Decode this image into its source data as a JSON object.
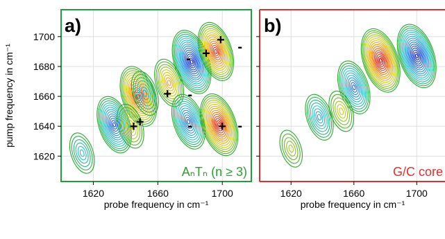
{
  "chart_data": [
    {
      "type": "contour",
      "panel_label": "a)",
      "annotation": "AₙTₙ (n ≥ 3)",
      "xlabel": "probe frequency in cm⁻¹",
      "ylabel": "pump frequency in cm⁻¹",
      "xlim": [
        1600,
        1718
      ],
      "ylim": [
        1603,
        1718
      ],
      "xticks": [
        1620,
        1660,
        1700
      ],
      "yticks": [
        1620,
        1640,
        1660,
        1680,
        1700
      ],
      "frame_color": "#1e9e3c",
      "annotation_color": "#2ca02c",
      "grid": true,
      "peaks": [
        {
          "x": 1633,
          "y": 1641,
          "sign": -1,
          "amp": 0.8
        },
        {
          "x": 1613,
          "y": 1622,
          "sign": -1,
          "amp": 0.35
        },
        {
          "x": 1648,
          "y": 1660,
          "sign": 1,
          "amp": 0.9
        },
        {
          "x": 1643,
          "y": 1640,
          "sign": 1,
          "amp": 0.45
        },
        {
          "x": 1652,
          "y": 1662,
          "sign": -1,
          "amp": 0.45
        },
        {
          "x": 1667,
          "y": 1669,
          "sign": 1,
          "amp": 0.55
        },
        {
          "x": 1681,
          "y": 1683,
          "sign": -1,
          "amp": 1.0
        },
        {
          "x": 1679,
          "y": 1643,
          "sign": -1,
          "amp": 0.75
        },
        {
          "x": 1696,
          "y": 1690,
          "sign": 1,
          "amp": 0.85
        },
        {
          "x": 1698,
          "y": 1641,
          "sign": 1,
          "amp": 0.95
        }
      ],
      "plus_markers": [
        {
          "x": 1645,
          "y": 1640
        },
        {
          "x": 1649,
          "y": 1643
        },
        {
          "x": 1666,
          "y": 1662
        },
        {
          "x": 1690,
          "y": 1689
        },
        {
          "x": 1699,
          "y": 1698
        },
        {
          "x": 1700,
          "y": 1640
        }
      ],
      "minus_markers": [
        {
          "x": 1679,
          "y": 1685
        },
        {
          "x": 1680,
          "y": 1661
        },
        {
          "x": 1680,
          "y": 1640
        },
        {
          "x": 1711,
          "y": 1693
        },
        {
          "x": 1711,
          "y": 1640
        }
      ]
    },
    {
      "type": "contour",
      "panel_label": "b)",
      "annotation": "G/C core",
      "xlabel": "probe frequency in cm⁻¹",
      "ylabel": "",
      "xlim": [
        1600,
        1718
      ],
      "ylim": [
        1603,
        1718
      ],
      "xticks": [
        1620,
        1660,
        1700
      ],
      "yticks": [
        1620,
        1640,
        1660,
        1680,
        1700
      ],
      "frame_color": "#e0302c",
      "annotation_color": "#e0302c",
      "grid": true,
      "peaks": [
        {
          "x": 1677,
          "y": 1684,
          "sign": 1,
          "amp": 1.0
        },
        {
          "x": 1700,
          "y": 1687,
          "sign": -1,
          "amp": 1.0
        },
        {
          "x": 1660,
          "y": 1666,
          "sign": -1,
          "amp": 0.7
        },
        {
          "x": 1638,
          "y": 1646,
          "sign": -1,
          "amp": 0.5
        },
        {
          "x": 1652,
          "y": 1650,
          "sign": 1,
          "amp": 0.35
        },
        {
          "x": 1620,
          "y": 1625,
          "sign": 1,
          "amp": 0.25
        }
      ]
    }
  ]
}
